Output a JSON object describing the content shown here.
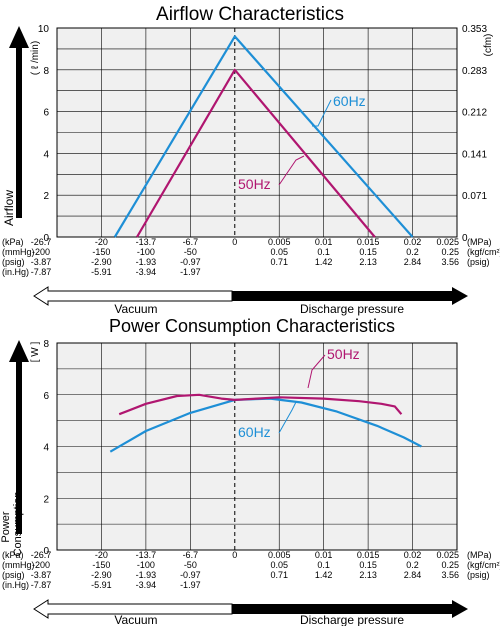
{
  "colors": {
    "series_60hz": "#1E8FD6",
    "series_50hz": "#B01670",
    "grid": "#000000",
    "plot_bg": "#F0F0F0",
    "axis_dark": "#000000"
  },
  "x_scale": {
    "kpa": [
      "-26.7",
      "-20",
      "-13.7",
      "-6.7",
      "0",
      "0.005",
      "0.01",
      "0.015",
      "0.02",
      "0.025"
    ],
    "mmhg": [
      "-200",
      "-150",
      "-100",
      "-50",
      "",
      "0.05",
      "0.1",
      "0.15",
      "0.2",
      "0.25"
    ],
    "psig": [
      "-3.87",
      "-2.90",
      "-1.93",
      "-0.97",
      "",
      "0.71",
      "1.42",
      "2.13",
      "2.84",
      "3.56"
    ],
    "inhg": [
      "-7.87",
      "-5.91",
      "-3.94",
      "-1.97",
      "",
      "",
      "",
      "",
      "",
      ""
    ],
    "left_units": [
      "(kPa)",
      "(mmHg)",
      "(psig)",
      "(in.Hg)"
    ],
    "right_units": [
      "(MPa)",
      "(kgf/cm²)",
      "(psig)",
      ""
    ],
    "left_region": "Vacuum",
    "right_region": "Discharge pressure"
  },
  "chart_data": [
    {
      "type": "line",
      "title": "Airflow Characteristics",
      "ylabel": "Airflow",
      "yunit": "( ℓ /min)",
      "yunit_right": "(cfm)",
      "ylim": [
        0,
        10
      ],
      "yticks": [
        "0",
        "2",
        "4",
        "6",
        "8",
        "10"
      ],
      "yticks_right": [
        "0",
        "0.071",
        "0.141",
        "0.212",
        "0.283",
        "0.353"
      ],
      "x_positions": [
        0,
        1,
        2,
        3,
        4,
        5,
        6,
        7,
        8,
        9
      ],
      "grid": true,
      "series": [
        {
          "name": "60Hz",
          "points": [
            [
              1.3,
              0
            ],
            [
              4,
              9.6
            ],
            [
              8,
              0
            ]
          ]
        },
        {
          "name": "50Hz",
          "points": [
            [
              1.8,
              0
            ],
            [
              4,
              8.0
            ],
            [
              7.15,
              0
            ]
          ]
        }
      ]
    },
    {
      "type": "line",
      "title": "Power Consumption Characteristics",
      "ylabel": "Power Consumption",
      "yunit": "[ W ]",
      "ylim": [
        0,
        8
      ],
      "yticks": [
        "0",
        "2",
        "4",
        "6",
        "8"
      ],
      "x_positions": [
        0,
        1,
        2,
        3,
        4,
        5,
        6,
        7,
        8,
        9
      ],
      "grid": true,
      "series": [
        {
          "name": "60Hz",
          "points": [
            [
              1.2,
              3.8
            ],
            [
              2,
              4.6
            ],
            [
              3,
              5.3
            ],
            [
              4,
              5.8
            ],
            [
              4.8,
              5.85
            ],
            [
              5.5,
              5.7
            ],
            [
              6.3,
              5.35
            ],
            [
              7.2,
              4.8
            ],
            [
              7.8,
              4.35
            ],
            [
              8.2,
              4.0
            ]
          ]
        },
        {
          "name": "50Hz",
          "points": [
            [
              1.4,
              5.25
            ],
            [
              2,
              5.65
            ],
            [
              2.7,
              5.95
            ],
            [
              3.2,
              6.0
            ],
            [
              3.7,
              5.85
            ],
            [
              4,
              5.8
            ],
            [
              4.5,
              5.85
            ],
            [
              5,
              5.9
            ],
            [
              6,
              5.85
            ],
            [
              6.8,
              5.75
            ],
            [
              7.3,
              5.65
            ],
            [
              7.6,
              5.55
            ],
            [
              7.75,
              5.25
            ]
          ]
        }
      ]
    }
  ]
}
